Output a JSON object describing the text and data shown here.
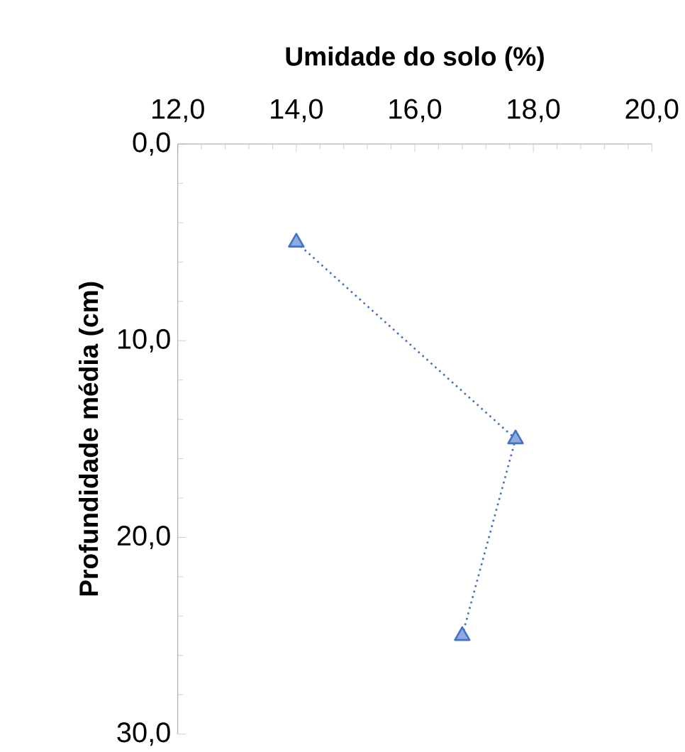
{
  "chart_data": {
    "type": "line",
    "xlabel": "Umidade do solo (%)",
    "ylabel": "Profundidade média (cm)",
    "series": [
      {
        "color": "#4472c4",
        "x": [
          14.0,
          17.7,
          16.8
        ],
        "values": [
          5,
          15,
          25
        ]
      }
    ],
    "xlim": [
      12,
      20
    ],
    "xticks": [
      {
        "value": 12,
        "label": "12,0"
      },
      {
        "value": 14,
        "label": "14,0"
      },
      {
        "value": 16,
        "label": "16,0"
      },
      {
        "value": 18,
        "label": "18,0"
      },
      {
        "value": 20,
        "label": "20,0"
      }
    ],
    "ylim": [
      30,
      0
    ],
    "yticks": [
      {
        "value": 0,
        "label": "0,0"
      },
      {
        "value": 10,
        "label": "10,0"
      },
      {
        "value": 20,
        "label": "20,0"
      },
      {
        "value": 30,
        "label": "30,0"
      }
    ],
    "marker": "triangle",
    "line_style": "dotted",
    "grid": false
  }
}
